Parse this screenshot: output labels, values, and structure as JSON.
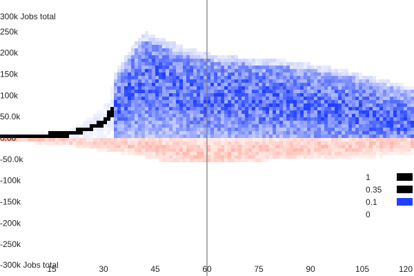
{
  "chart_data": {
    "type": "heatmap",
    "title": "",
    "ylabel_top": "300k Jobs total",
    "ylabel_bottom": "-300k Jobs total",
    "xlim": [
      0,
      120
    ],
    "ylim": [
      -300000,
      300000
    ],
    "x_ticks": [
      15,
      30,
      45,
      60,
      75,
      90,
      105,
      120
    ],
    "x_tick_labels": [
      "15",
      "30",
      "45",
      "60",
      "75",
      "90",
      "105",
      "120"
    ],
    "y_ticks": [
      250000,
      200000,
      150000,
      100000,
      50000,
      0,
      -50000,
      -100000,
      -150000,
      -200000,
      -250000
    ],
    "y_tick_labels": [
      "250k",
      "200k",
      "150k",
      "100k",
      "50.0k",
      "0.00",
      "-50.0k",
      "-100k",
      "-150k",
      "-200k",
      "-250k"
    ],
    "marker_x": 60,
    "positive_color": "#2040ff",
    "negative_color": "#ff4020",
    "max_color": "#000000",
    "density_bands": {
      "x": [
        0,
        10,
        20,
        25,
        30,
        34,
        38,
        42,
        45,
        50,
        55,
        60,
        70,
        80,
        90,
        100,
        110,
        120
      ],
      "positive_center": [
        2000,
        4000,
        10000,
        20000,
        38000,
        75000,
        110000,
        130000,
        130000,
        115000,
        105000,
        100000,
        95000,
        88000,
        75000,
        65000,
        50000,
        38000
      ],
      "positive_spread": [
        4000,
        5000,
        8000,
        14000,
        25000,
        50000,
        75000,
        85000,
        85000,
        80000,
        78000,
        75000,
        75000,
        72000,
        68000,
        62000,
        55000,
        45000
      ],
      "positive_max": [
        8000,
        12000,
        25000,
        45000,
        80000,
        160000,
        210000,
        250000,
        240000,
        225000,
        210000,
        200000,
        190000,
        185000,
        175000,
        160000,
        140000,
        120000
      ],
      "negative_center": [
        -4000,
        -5000,
        -8000,
        -10000,
        -12000,
        -14000,
        -15000,
        -18000,
        -22000,
        -30000,
        -35000,
        -38000,
        -30000,
        -25000,
        -22000,
        -20000,
        -15000,
        -12000
      ],
      "negative_spread": [
        3000,
        4000,
        6000,
        8000,
        10000,
        12000,
        14000,
        16000,
        18000,
        22000,
        25000,
        25000,
        22000,
        20000,
        18000,
        16000,
        14000,
        12000
      ],
      "negative_min": [
        -10000,
        -12000,
        -18000,
        -25000,
        -30000,
        -35000,
        -40000,
        -45000,
        -52000,
        -58000,
        -60000,
        -60000,
        -55000,
        -52000,
        -50000,
        -48000,
        -45000,
        -40000
      ]
    },
    "legend": {
      "placement": "right",
      "items": [
        {
          "label": "1",
          "color": "#000000"
        },
        {
          "label": "0.35",
          "color": "#000000"
        },
        {
          "label": "0.1",
          "color": "#2040ff"
        },
        {
          "label": "0",
          "color": "#ffffff"
        }
      ]
    }
  }
}
